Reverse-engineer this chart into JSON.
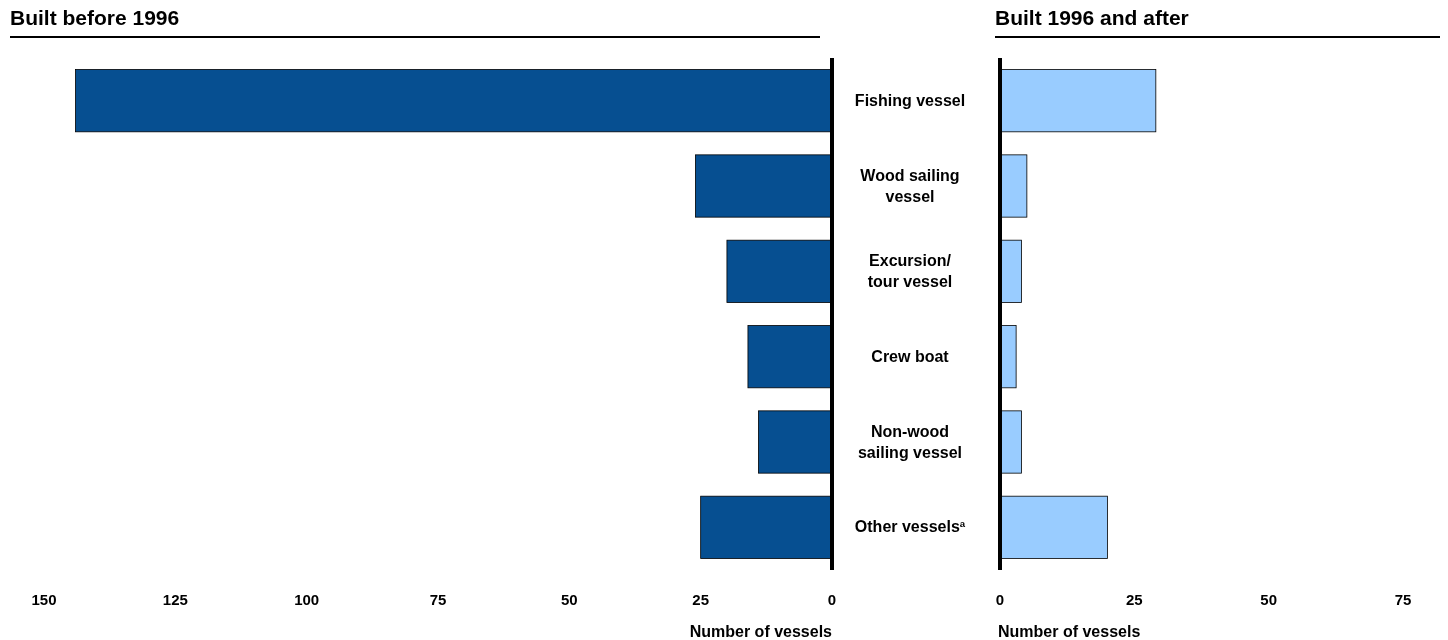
{
  "chart_data": [
    {
      "type": "bar",
      "orientation": "horizontal",
      "title": "Built before 1996",
      "xlabel": "Number of vessels",
      "categories": [
        null,
        null,
        null,
        null,
        null,
        null
      ],
      "values": [
        144,
        26,
        20,
        16,
        14,
        25
      ],
      "color": "#064f91",
      "xlim": [
        150,
        0
      ],
      "xticks": [
        150,
        125,
        100,
        75,
        50,
        25,
        0
      ],
      "tick_labels": "x"
    },
    {
      "type": "bar",
      "orientation": "horizontal",
      "title": "Built 1996 and after",
      "xlabel": "Number of vessels",
      "categories": [
        "Fishing vessel",
        "Wood sailing vessel",
        "Excursion/ tour vessel",
        "Crew boat",
        "Non-wood sailing vessel",
        "Other vessels$^{a}$"
      ],
      "values": [
        29,
        5,
        4,
        3,
        4,
        20
      ],
      "color": "#99ccff",
      "xlim": [
        0,
        75
      ],
      "xticks": [
        0,
        25,
        50,
        75
      ]
    }
  ]
}
